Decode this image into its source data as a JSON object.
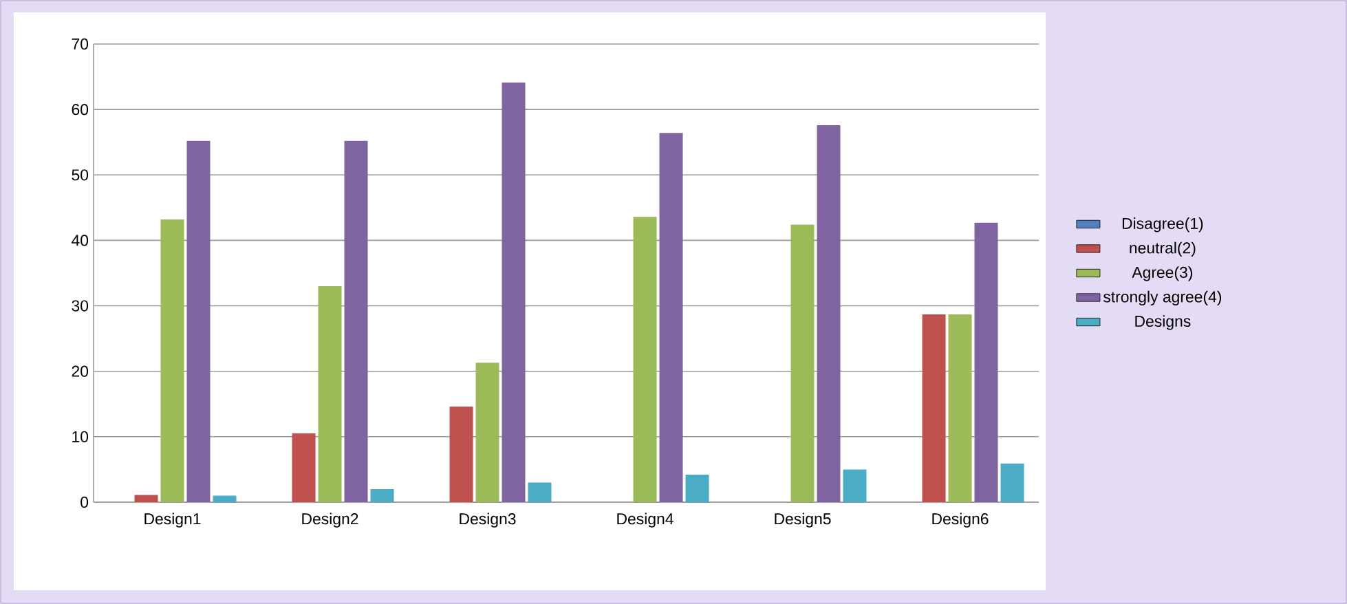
{
  "chart_data": {
    "type": "bar",
    "categories": [
      "Design1",
      "Design2",
      "Design3",
      "Design4",
      "Design5",
      "Design6"
    ],
    "series": [
      {
        "name": "Disagree(1)",
        "color": "#4f81bd",
        "values": [
          0,
          0,
          0,
          0,
          0,
          0
        ]
      },
      {
        "name": "neutral(2)",
        "color": "#c0504d",
        "values": [
          1.1,
          10.5,
          14.6,
          0,
          0,
          28.7
        ]
      },
      {
        "name": "Agree(3)",
        "color": "#9bbb59",
        "values": [
          43.2,
          33,
          21.3,
          43.6,
          42.4,
          28.7
        ]
      },
      {
        "name": "strongly agree(4)",
        "color": "#8064a2",
        "values": [
          55.2,
          55.2,
          64.1,
          56.4,
          57.6,
          42.7
        ]
      },
      {
        "name": "Designs",
        "color": "#4bacc6",
        "values": [
          1,
          2,
          3,
          4.2,
          5,
          5.9
        ]
      }
    ],
    "ylim": [
      0,
      70
    ],
    "yticks": [
      0,
      10,
      20,
      30,
      40,
      50,
      60,
      70
    ],
    "grid": "y",
    "legend": "right"
  }
}
